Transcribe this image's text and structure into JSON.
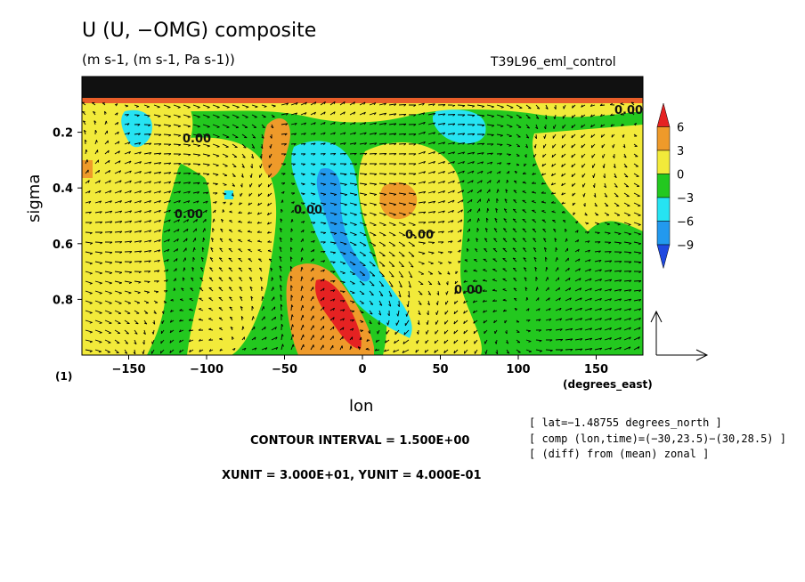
{
  "header": {
    "title": "U (U, −OMG) composite",
    "subtitle": "(m s-1, (m s-1, Pa s-1))",
    "run": "T39L96_eml_control"
  },
  "footer": {
    "panel_id": "(1)",
    "contour_interval": "CONTOUR INTERVAL = 1.500E+00",
    "vector_units": "XUNIT = 3.000E+01, YUNIT = 4.000E-01",
    "notes": [
      "[ lat=−1.48755 degrees_north ]",
      "[ comp (lon,time)=(−30,23.5)−(30,28.5) ]",
      "[ (diff) from (mean) zonal ]"
    ]
  },
  "chart_data": {
    "type": "heatmap",
    "title": "U (U, −OMG) composite",
    "xlabel": "lon",
    "xunit": "(degrees_east)",
    "ylabel": "sigma",
    "xlim": [
      -180,
      180
    ],
    "ylim": [
      1.0,
      0.0
    ],
    "xticks": [
      -150,
      -100,
      -50,
      0,
      50,
      100,
      150
    ],
    "yticks": [
      0.2,
      0.4,
      0.6,
      0.8
    ],
    "colorbar": {
      "levels": [
        6,
        3,
        0,
        -3,
        -6,
        -9
      ],
      "colors": [
        "#e52222",
        "#ee9a2a",
        "#f2ea3a",
        "#23c81f",
        "#26e3f2",
        "#2299ee",
        "#1f49e0"
      ]
    },
    "fill_colors": {
      "neg9": "#1f49e0",
      "neg6": "#2299ee",
      "neg3": "#26e3f2",
      "neg0": "#23c81f",
      "pos0": "#f2ea3a",
      "pos3": "#ee9a2a",
      "pos6": "#e52222"
    },
    "anomalies": [
      {
        "lon": -10,
        "sigma": 0.55,
        "value": -7.5
      },
      {
        "lon": -20,
        "sigma": 0.85,
        "value": 6.5
      },
      {
        "lon": -55,
        "sigma": 0.25,
        "value": 3.5
      },
      {
        "lon": 25,
        "sigma": 0.45,
        "value": 3.5
      },
      {
        "lon": -150,
        "sigma": 0.2,
        "value": -4.5
      },
      {
        "lon": 80,
        "sigma": 0.2,
        "value": -4.5
      }
    ],
    "contour_labels": [
      "0.00",
      "0.00",
      "0.00",
      "0.00",
      "0.00",
      "0.00"
    ]
  }
}
